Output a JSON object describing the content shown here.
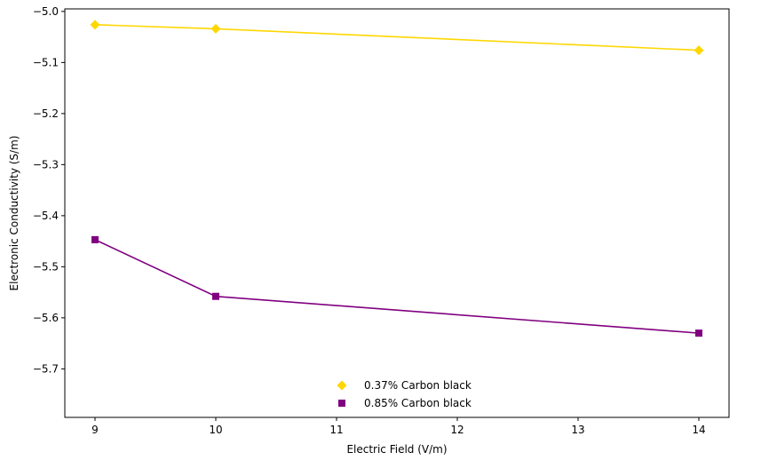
{
  "chart_data": {
    "type": "line",
    "title": "",
    "xlabel": "Electric Field (V/m)",
    "ylabel": "Electronic Conductivity (S/m)",
    "xlim": [
      8.75,
      14.25
    ],
    "ylim": [
      -5.795,
      -4.995
    ],
    "xticks": [
      9,
      10,
      11,
      12,
      13,
      14
    ],
    "yticks": [
      -5.7,
      -5.6,
      -5.5,
      -5.4,
      -5.3,
      -5.2,
      -5.1,
      -5.0
    ],
    "xtick_labels": [
      "9",
      "10",
      "11",
      "12",
      "13",
      "14"
    ],
    "ytick_labels": [
      "−5.7",
      "−5.6",
      "−5.5",
      "−5.4",
      "−5.3",
      "−5.2",
      "−5.1",
      "−5.0"
    ],
    "grid": false,
    "legend_position": "lower center",
    "series": [
      {
        "name": "0.37% Carbon black",
        "x": [
          9,
          10,
          14
        ],
        "values": [
          -5.026,
          -5.034,
          -5.076
        ],
        "color": "#FFD700",
        "marker": "diamond"
      },
      {
        "name": "0.85% Carbon black",
        "x": [
          9,
          10,
          14
        ],
        "values": [
          -5.447,
          -5.558,
          -5.63
        ],
        "color": "#800080",
        "marker": "square"
      }
    ]
  }
}
